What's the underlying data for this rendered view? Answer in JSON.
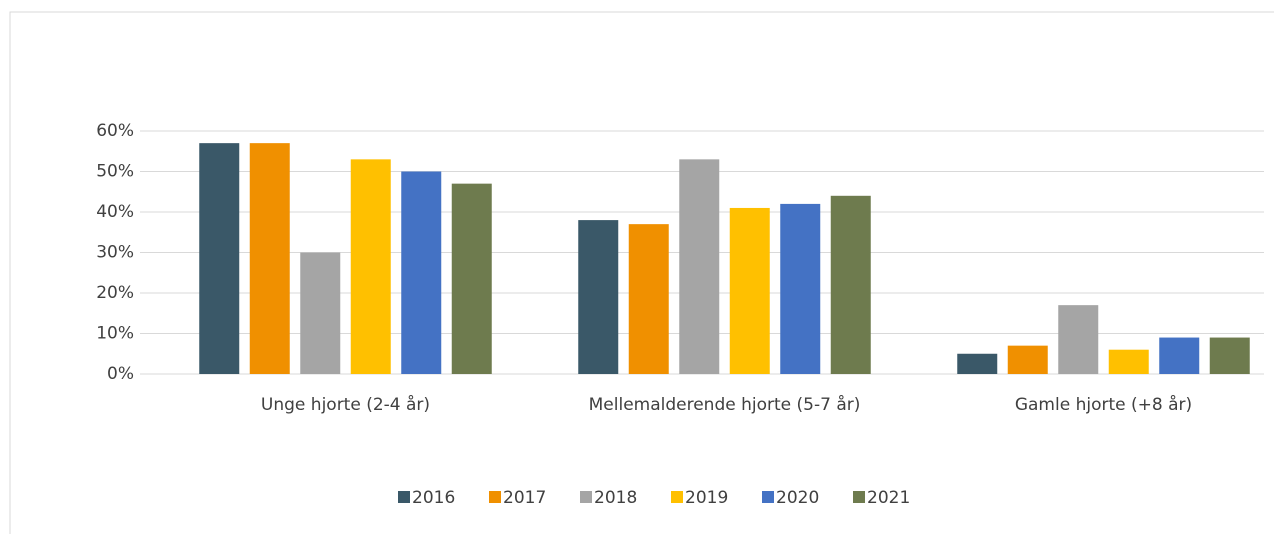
{
  "chart_data": {
    "type": "bar",
    "categories": [
      "Unge hjorte (2-4 år)",
      "Mellemalderende hjorte (5-7 år)",
      "Gamle hjorte (+8 år)"
    ],
    "series": [
      {
        "name": "2016",
        "color": "#3a5868",
        "values": [
          57,
          38,
          5
        ]
      },
      {
        "name": "2017",
        "color": "#f09000",
        "values": [
          57,
          37,
          7
        ]
      },
      {
        "name": "2018",
        "color": "#a5a5a5",
        "values": [
          30,
          53,
          17
        ]
      },
      {
        "name": "2019",
        "color": "#ffc000",
        "values": [
          53,
          41,
          6
        ]
      },
      {
        "name": "2020",
        "color": "#4472c4",
        "values": [
          50,
          42,
          9
        ]
      },
      {
        "name": "2021",
        "color": "#6e7b4e",
        "values": [
          47,
          44,
          9
        ]
      }
    ],
    "ylim": [
      0,
      60
    ],
    "yticks": [
      {
        "value": 0,
        "label": "0%"
      },
      {
        "value": 10,
        "label": "10%"
      },
      {
        "value": 20,
        "label": "20%"
      },
      {
        "value": 30,
        "label": "30%"
      },
      {
        "value": 40,
        "label": "40%"
      },
      {
        "value": 50,
        "label": "50%"
      },
      {
        "value": 60,
        "label": "60%"
      }
    ],
    "grid": true,
    "legend": "bottom"
  }
}
